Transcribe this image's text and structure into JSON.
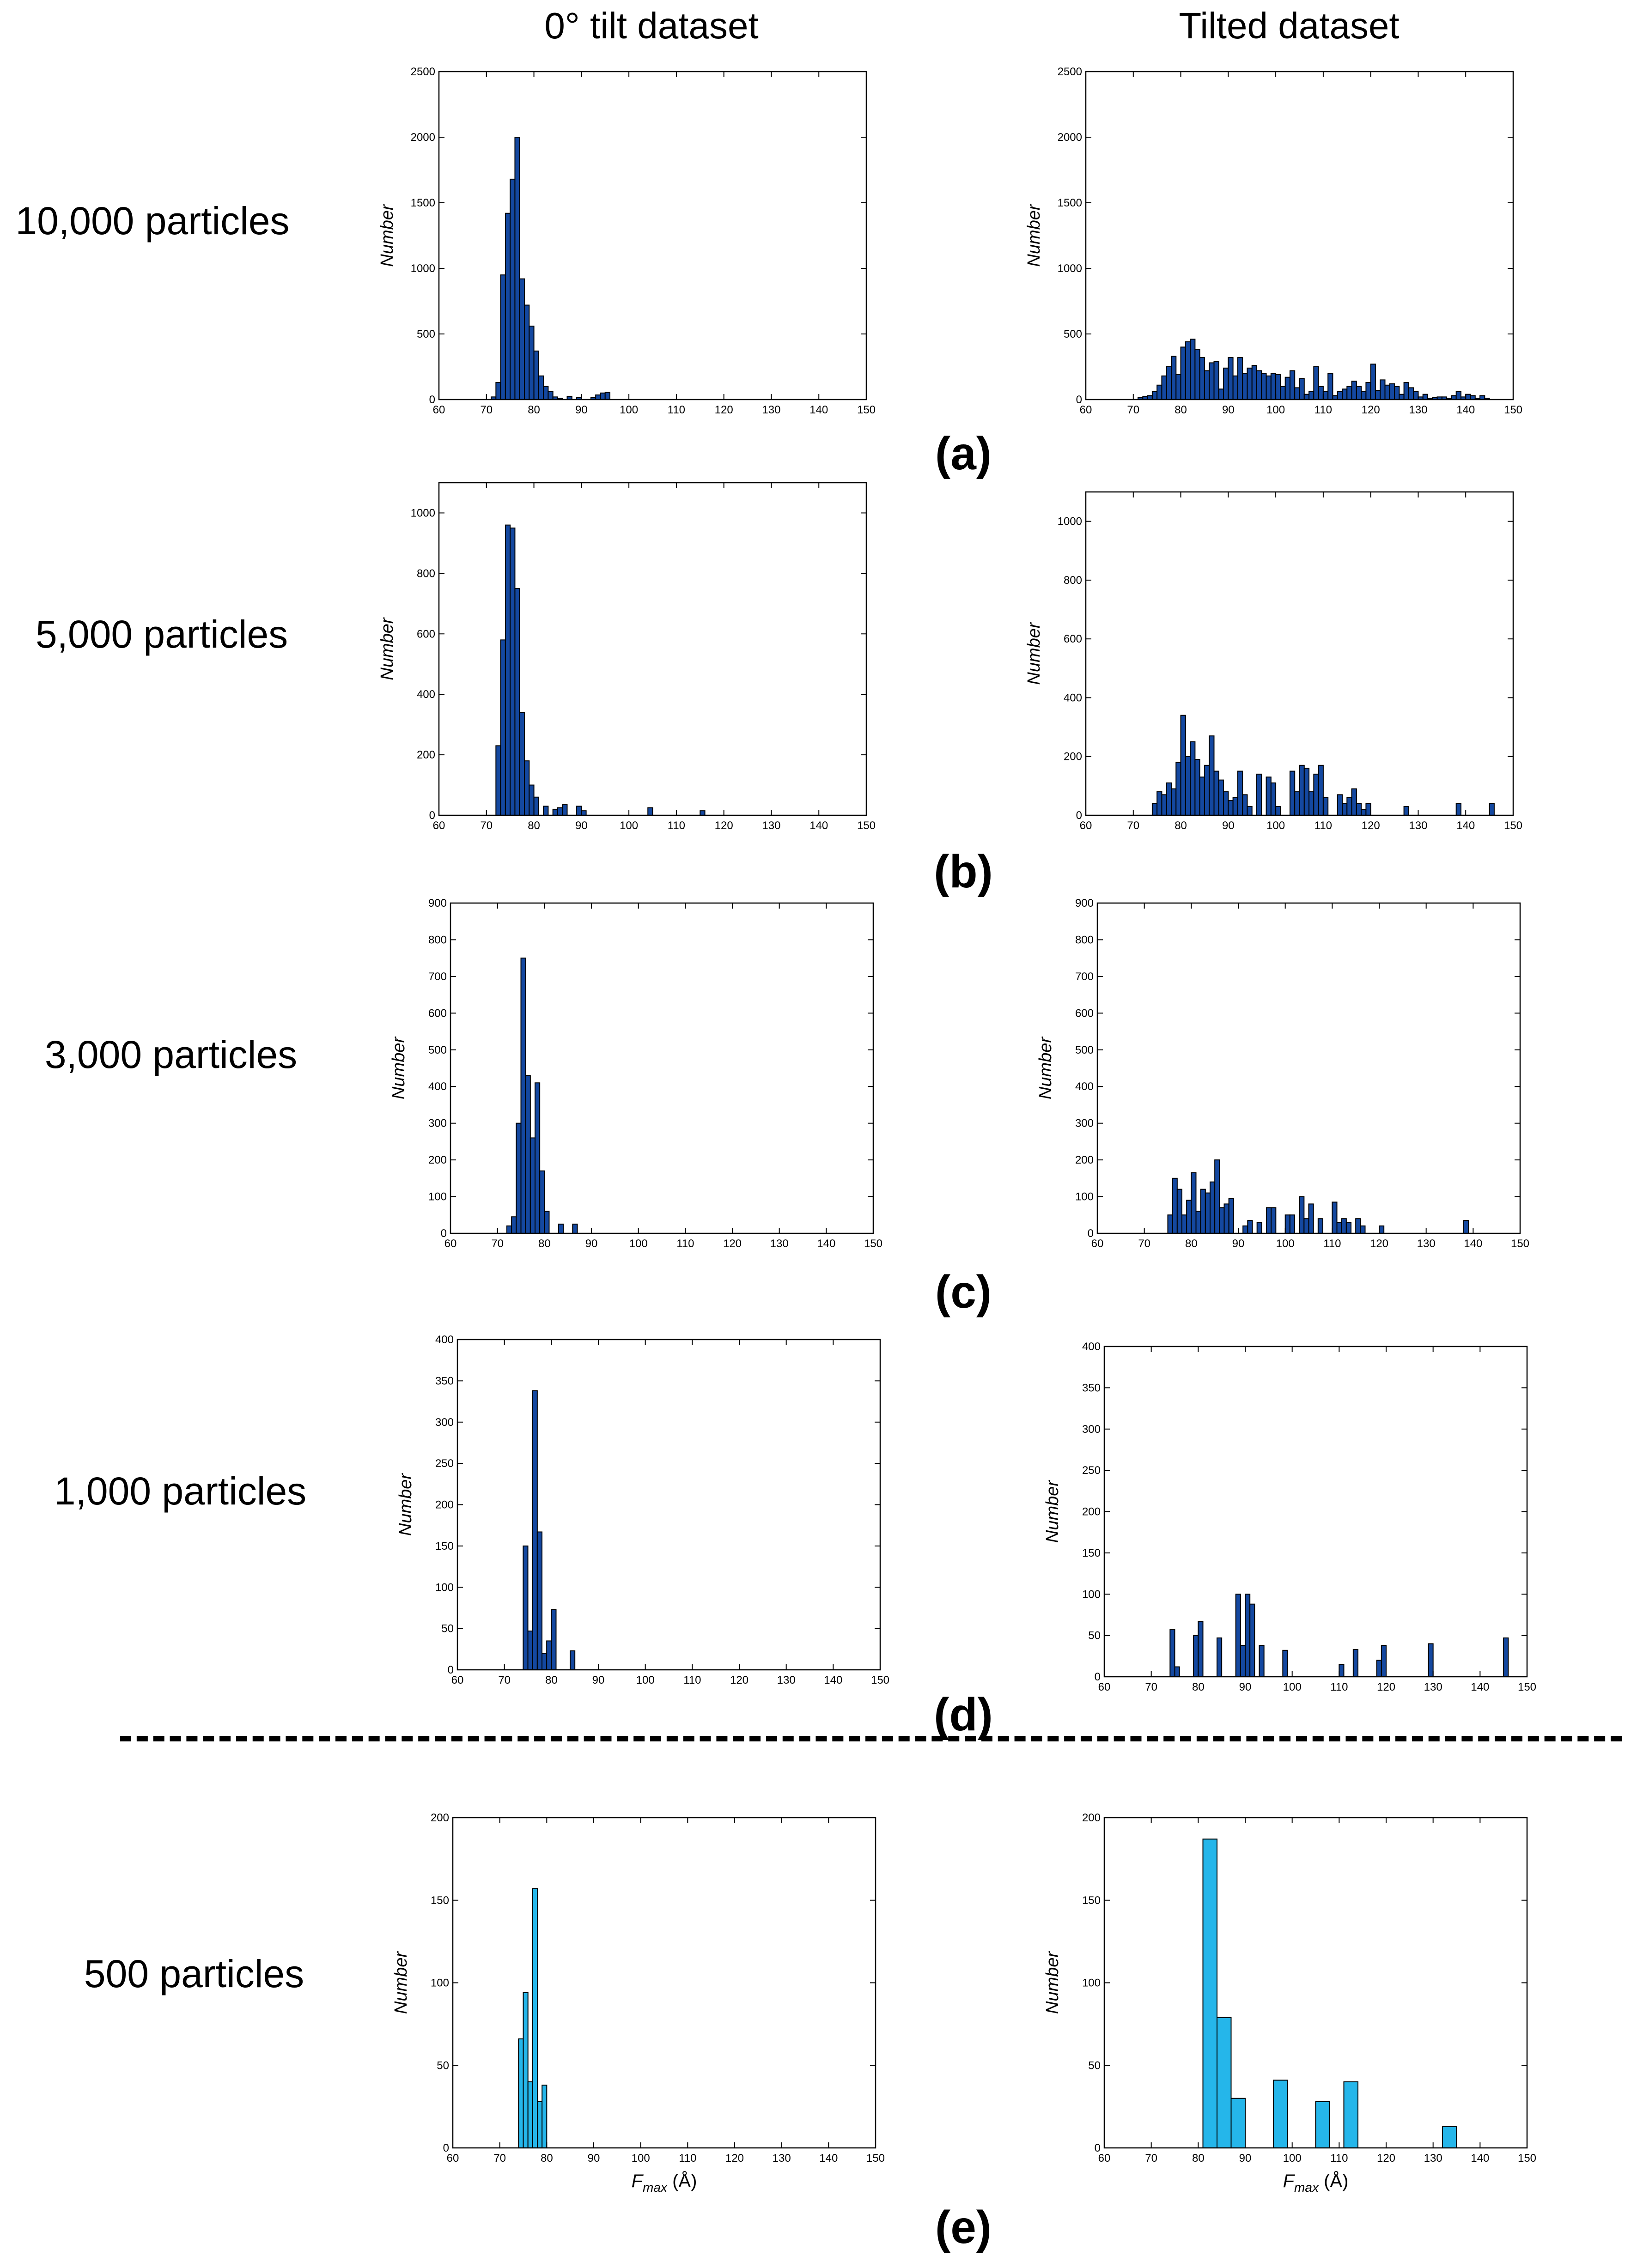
{
  "headers": {
    "left": "0° tilt dataset",
    "right": "Tilted dataset"
  },
  "divider": "dashed",
  "rows": [
    {
      "label": "10,000 particles",
      "panel": "(a)"
    },
    {
      "label": "5,000 particles",
      "panel": "(b)"
    },
    {
      "label": "3,000 particles",
      "panel": "(c)"
    },
    {
      "label": "1,000 particles",
      "panel": "(d)"
    },
    {
      "label": "500 particles",
      "panel": "(e)"
    }
  ],
  "colors": {
    "dark_bar": "#1448a0",
    "light_bar": "#25b6ea",
    "edge": "#000000"
  },
  "chart_data": [
    {
      "id": "a-left",
      "type": "bar",
      "title": "",
      "ylabel": "Number",
      "xlabel": "",
      "xlim": [
        60,
        150
      ],
      "ylim": [
        0,
        2500
      ],
      "yticks": [
        0,
        500,
        1000,
        1500,
        2000,
        2500
      ],
      "xticks": [
        60,
        70,
        80,
        90,
        100,
        110,
        120,
        130,
        140,
        150
      ],
      "bin_width": 1,
      "color": "dark",
      "x": [
        71,
        72,
        73,
        74,
        75,
        76,
        77,
        78,
        79,
        80,
        81,
        82,
        83,
        84,
        85,
        86,
        87,
        88,
        89,
        90,
        91,
        92,
        93,
        94,
        95
      ],
      "values": [
        20,
        130,
        950,
        1420,
        1680,
        2000,
        920,
        720,
        560,
        370,
        180,
        100,
        60,
        20,
        10,
        0,
        25,
        0,
        15,
        0,
        0,
        15,
        35,
        50,
        55
      ]
    },
    {
      "id": "a-right",
      "type": "bar",
      "title": "",
      "ylabel": "Number",
      "xlabel": "",
      "xlim": [
        60,
        150
      ],
      "ylim": [
        0,
        2500
      ],
      "yticks": [
        0,
        500,
        1000,
        1500,
        2000,
        2500
      ],
      "xticks": [
        60,
        70,
        80,
        90,
        100,
        110,
        120,
        130,
        140,
        150
      ],
      "bin_width": 1,
      "color": "dark",
      "x": [
        71,
        72,
        73,
        74,
        75,
        76,
        77,
        78,
        79,
        80,
        81,
        82,
        83,
        84,
        85,
        86,
        87,
        88,
        89,
        90,
        91,
        92,
        93,
        94,
        95,
        96,
        97,
        98,
        99,
        100,
        101,
        102,
        103,
        104,
        105,
        106,
        107,
        108,
        109,
        110,
        111,
        112,
        113,
        114,
        115,
        116,
        117,
        118,
        119,
        120,
        121,
        122,
        123,
        124,
        125,
        126,
        127,
        128,
        129,
        130,
        131,
        132,
        133,
        134,
        135,
        136,
        137,
        138,
        139,
        140,
        141,
        142,
        143,
        144,
        145
      ],
      "values": [
        15,
        25,
        30,
        60,
        110,
        180,
        250,
        330,
        190,
        400,
        440,
        460,
        380,
        320,
        220,
        280,
        290,
        80,
        240,
        320,
        180,
        320,
        200,
        240,
        260,
        220,
        200,
        180,
        200,
        190,
        100,
        170,
        220,
        90,
        160,
        40,
        60,
        250,
        100,
        60,
        200,
        30,
        60,
        80,
        100,
        140,
        100,
        60,
        130,
        270,
        70,
        150,
        110,
        120,
        100,
        40,
        130,
        90,
        60,
        20,
        40,
        10,
        15,
        20,
        20,
        10,
        30,
        60,
        20,
        40,
        30,
        10,
        30,
        10,
        0
      ]
    },
    {
      "id": "b-left",
      "type": "bar",
      "title": "",
      "ylabel": "Number",
      "xlabel": "",
      "xlim": [
        60,
        150
      ],
      "ylim": [
        0,
        1100
      ],
      "yticks": [
        0,
        200,
        400,
        600,
        800,
        1000
      ],
      "xticks": [
        60,
        70,
        80,
        90,
        100,
        110,
        120,
        130,
        140,
        150
      ],
      "bin_width": 1,
      "color": "dark",
      "x": [
        72,
        73,
        74,
        75,
        76,
        77,
        78,
        79,
        80,
        81,
        82,
        83,
        84,
        85,
        86,
        87,
        88,
        89,
        90,
        91,
        92,
        93,
        104,
        115
      ],
      "values": [
        230,
        580,
        960,
        950,
        750,
        340,
        180,
        100,
        60,
        0,
        30,
        0,
        20,
        25,
        35,
        0,
        0,
        30,
        15,
        0,
        0,
        0,
        25,
        15
      ]
    },
    {
      "id": "b-right",
      "type": "bar",
      "title": "",
      "ylabel": "Number",
      "xlabel": "",
      "xlim": [
        60,
        150
      ],
      "ylim": [
        0,
        1100
      ],
      "yticks": [
        0,
        200,
        400,
        600,
        800,
        1000
      ],
      "xticks": [
        60,
        70,
        80,
        90,
        100,
        110,
        120,
        130,
        140,
        150
      ],
      "bin_width": 1,
      "color": "dark",
      "x": [
        74,
        75,
        76,
        77,
        78,
        79,
        80,
        81,
        82,
        83,
        84,
        85,
        86,
        87,
        88,
        89,
        90,
        91,
        92,
        93,
        94,
        95,
        96,
        97,
        98,
        99,
        100,
        101,
        102,
        103,
        104,
        105,
        106,
        107,
        108,
        109,
        110,
        111,
        112,
        113,
        114,
        115,
        116,
        117,
        118,
        119,
        120,
        121,
        122,
        123,
        124,
        125,
        126,
        127,
        128,
        129,
        130,
        131,
        132,
        133,
        134,
        135,
        136,
        137,
        138,
        139,
        140,
        141,
        142,
        143,
        144,
        145
      ],
      "values": [
        40,
        80,
        70,
        110,
        90,
        180,
        340,
        200,
        250,
        190,
        130,
        170,
        270,
        150,
        120,
        80,
        50,
        60,
        150,
        70,
        30,
        0,
        140,
        0,
        130,
        110,
        30,
        0,
        0,
        150,
        80,
        170,
        160,
        80,
        140,
        170,
        60,
        0,
        0,
        70,
        40,
        60,
        90,
        40,
        20,
        40,
        0,
        0,
        0,
        0,
        0,
        0,
        0,
        30,
        0,
        0,
        0,
        0,
        0,
        0,
        0,
        0,
        0,
        0,
        40,
        0,
        0,
        0,
        0,
        0,
        0,
        40
      ]
    },
    {
      "id": "c-left",
      "type": "bar",
      "title": "",
      "ylabel": "Number",
      "xlabel": "",
      "xlim": [
        60,
        150
      ],
      "ylim": [
        0,
        900
      ],
      "yticks": [
        0,
        100,
        200,
        300,
        400,
        500,
        600,
        700,
        800,
        900
      ],
      "xticks": [
        60,
        70,
        80,
        90,
        100,
        110,
        120,
        130,
        140,
        150
      ],
      "bin_width": 1,
      "color": "dark",
      "x": [
        72,
        73,
        74,
        75,
        76,
        77,
        78,
        79,
        80,
        81,
        82,
        83,
        84,
        85,
        86
      ],
      "values": [
        20,
        45,
        300,
        750,
        430,
        260,
        410,
        170,
        60,
        0,
        0,
        25,
        0,
        0,
        25
      ]
    },
    {
      "id": "c-right",
      "type": "bar",
      "title": "",
      "ylabel": "Number",
      "xlabel": "",
      "xlim": [
        60,
        150
      ],
      "ylim": [
        0,
        900
      ],
      "yticks": [
        0,
        100,
        200,
        300,
        400,
        500,
        600,
        700,
        800,
        900
      ],
      "xticks": [
        60,
        70,
        80,
        90,
        100,
        110,
        120,
        130,
        140,
        150
      ],
      "bin_width": 1,
      "color": "dark",
      "x": [
        75,
        76,
        77,
        78,
        79,
        80,
        81,
        82,
        83,
        84,
        85,
        86,
        87,
        88,
        89,
        90,
        91,
        92,
        93,
        94,
        95,
        96,
        97,
        98,
        99,
        100,
        101,
        102,
        103,
        104,
        105,
        106,
        107,
        108,
        109,
        110,
        111,
        112,
        113,
        114,
        115,
        116,
        117,
        118,
        119,
        120,
        121,
        122,
        123,
        124,
        125,
        126,
        127,
        128,
        129,
        130,
        131,
        132,
        133,
        134,
        135,
        136,
        137,
        138
      ],
      "values": [
        50,
        150,
        120,
        50,
        90,
        165,
        60,
        120,
        110,
        140,
        200,
        70,
        80,
        95,
        0,
        0,
        20,
        35,
        0,
        30,
        0,
        70,
        70,
        0,
        0,
        50,
        50,
        0,
        100,
        40,
        80,
        0,
        40,
        0,
        0,
        85,
        30,
        40,
        30,
        0,
        40,
        20,
        0,
        0,
        0,
        20,
        0,
        0,
        0,
        0,
        0,
        0,
        0,
        0,
        0,
        0,
        0,
        0,
        0,
        0,
        0,
        0,
        0,
        35
      ]
    },
    {
      "id": "d-left",
      "type": "bar",
      "title": "",
      "ylabel": "Number",
      "xlabel": "",
      "xlim": [
        60,
        150
      ],
      "ylim": [
        0,
        400
      ],
      "yticks": [
        0,
        50,
        100,
        150,
        200,
        250,
        300,
        350,
        400
      ],
      "xticks": [
        60,
        70,
        80,
        90,
        100,
        110,
        120,
        130,
        140,
        150
      ],
      "bin_width": 1,
      "color": "dark",
      "x": [
        74,
        75,
        76,
        77,
        78,
        79,
        80,
        81,
        82,
        83,
        84
      ],
      "values": [
        150,
        47,
        338,
        167,
        20,
        35,
        73,
        0,
        0,
        0,
        23
      ]
    },
    {
      "id": "d-right",
      "type": "bar",
      "title": "",
      "ylabel": "Number",
      "xlabel": "",
      "xlim": [
        60,
        150
      ],
      "ylim": [
        0,
        400
      ],
      "yticks": [
        0,
        50,
        100,
        150,
        200,
        250,
        300,
        350,
        400
      ],
      "xticks": [
        60,
        70,
        80,
        90,
        100,
        110,
        120,
        130,
        140,
        150
      ],
      "bin_width": 1,
      "color": "dark",
      "x": [
        74,
        75,
        79,
        80,
        84,
        88,
        89,
        90,
        91,
        93,
        98,
        110,
        113,
        118,
        119,
        129,
        145
      ],
      "values": [
        57,
        12,
        50,
        67,
        47,
        100,
        38,
        100,
        88,
        38,
        32,
        15,
        33,
        20,
        38,
        40,
        47
      ]
    },
    {
      "id": "e-left",
      "type": "bar",
      "title": "",
      "ylabel": "Number",
      "xlabel": "F_max (Å)",
      "xlim": [
        60,
        150
      ],
      "ylim": [
        0,
        200
      ],
      "yticks": [
        0,
        50,
        100,
        150,
        200
      ],
      "xticks": [
        60,
        70,
        80,
        90,
        100,
        110,
        120,
        130,
        140,
        150
      ],
      "bin_width": 1,
      "color": "light",
      "x": [
        74,
        75,
        76,
        77,
        78,
        79
      ],
      "values": [
        66,
        94,
        40,
        157,
        28,
        38
      ]
    },
    {
      "id": "e-right",
      "type": "bar",
      "title": "",
      "ylabel": "Number",
      "xlabel": "F_max (Å)",
      "xlim": [
        60,
        150
      ],
      "ylim": [
        0,
        200
      ],
      "yticks": [
        0,
        50,
        100,
        150,
        200
      ],
      "xticks": [
        60,
        70,
        80,
        90,
        100,
        110,
        120,
        130,
        140,
        150
      ],
      "bin_width": 3,
      "color": "light",
      "x": [
        81,
        84,
        87,
        96,
        105,
        111,
        132
      ],
      "values": [
        187,
        79,
        30,
        41,
        28,
        40,
        13
      ]
    }
  ]
}
